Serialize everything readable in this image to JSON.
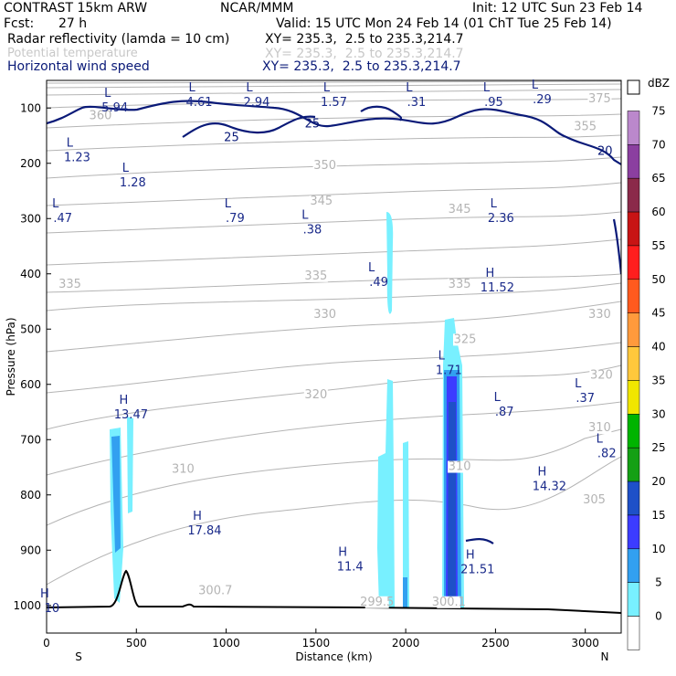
{
  "header": {
    "model": "CONTRAST 15km ARW",
    "center": "NCAR/MMM",
    "init": "Init: 12 UTC Sun 23 Feb 14",
    "fcst_label": "Fcst:",
    "fcst_value": "27 h",
    "valid": "Valid: 15 UTC Mon 24 Feb 14 (01 ChT Tue 25 Feb 14)",
    "fields": [
      {
        "name": "Radar reflectivity (lamda = 10 cm)",
        "xy": "XY= 235.3,  2.5 to 235.3,214.7"
      },
      {
        "name": "Potential temperature",
        "xy": "XY= 235.3,  2.5 to 235.3,214.7"
      },
      {
        "name": "Horizontal wind speed",
        "xy": "XY= 235.3,  2.5 to 235.3,214.7"
      }
    ]
  },
  "colors": {
    "wind_contour": "#0a1a78",
    "theta_contour": "#b4b4b4",
    "terrain": "#000000",
    "label_text": "#1a2a8a"
  },
  "chart_data": {
    "type": "cross-section",
    "title": "Radar reflectivity, potential temperature, horizontal wind speed",
    "xlabel": "Distance (km)",
    "ylabel": "Pressure (hPa)",
    "x_range": [
      0,
      3200
    ],
    "y_range_hpa": [
      1050,
      50
    ],
    "x_ticks": [
      0,
      500,
      1000,
      1500,
      2000,
      2500,
      3000
    ],
    "y_ticks": [
      100,
      200,
      300,
      400,
      500,
      600,
      700,
      800,
      900,
      1000
    ],
    "x_end_labels": {
      "left": "S",
      "right": "N"
    },
    "colorbar": {
      "units": "dBZ",
      "levels": [
        75,
        70,
        65,
        60,
        55,
        50,
        45,
        40,
        35,
        30,
        25,
        20,
        15,
        10,
        5,
        0
      ],
      "colors": [
        "#bb88cc",
        "#8b3fa0",
        "#8b2a4a",
        "#c81414",
        "#ff1e1e",
        "#ff5a1e",
        "#ff9a3c",
        "#ffc83c",
        "#f0e600",
        "#00b400",
        "#14a014",
        "#1e50c8",
        "#3c3cff",
        "#32a0f0",
        "#78f0ff",
        "#ffffff"
      ]
    },
    "theta_levels": [
      {
        "label": "300.7",
        "x": 940,
        "p": 980
      },
      {
        "label": "299.5",
        "x": 1840,
        "p": 1000
      },
      {
        "label": "300.1",
        "x": 2240,
        "p": 1000
      },
      {
        "label": "305",
        "x": 3050,
        "p": 815
      },
      {
        "label": "310",
        "x": 760,
        "p": 760
      },
      {
        "label": "310",
        "x": 2300,
        "p": 755
      },
      {
        "label": "310",
        "x": 3080,
        "p": 685
      },
      {
        "label": "320",
        "x": 1500,
        "p": 625
      },
      {
        "label": "320",
        "x": 3090,
        "p": 590
      },
      {
        "label": "325",
        "x": 2330,
        "p": 525
      },
      {
        "label": "330",
        "x": 1550,
        "p": 480
      },
      {
        "label": "330",
        "x": 3080,
        "p": 480
      },
      {
        "label": "335",
        "x": 130,
        "p": 425
      },
      {
        "label": "335",
        "x": 1500,
        "p": 410
      },
      {
        "label": "335",
        "x": 2300,
        "p": 425
      },
      {
        "label": "345",
        "x": 1530,
        "p": 275
      },
      {
        "label": "345",
        "x": 2300,
        "p": 290
      },
      {
        "label": "350",
        "x": 1550,
        "p": 210
      },
      {
        "label": "355",
        "x": 3000,
        "p": 140
      },
      {
        "label": "360",
        "x": 300,
        "p": 120
      },
      {
        "label": "375",
        "x": 3080,
        "p": 90
      }
    ],
    "wind_labels": [
      {
        "label": "25",
        "x": 1480,
        "p": 135
      },
      {
        "label": "25",
        "x": 1030,
        "p": 160
      },
      {
        "label": "20",
        "x": 3110,
        "p": 185
      }
    ],
    "extrema": [
      {
        "kind": "L",
        "value": "5.94",
        "x": 380,
        "p": 95
      },
      {
        "kind": "L",
        "value": "4.61",
        "x": 850,
        "p": 85
      },
      {
        "kind": "L",
        "value": "2.94",
        "x": 1170,
        "p": 85
      },
      {
        "kind": "L",
        "value": "1.57",
        "x": 1600,
        "p": 85
      },
      {
        "kind": "L",
        "value": ".31",
        "x": 2060,
        "p": 85
      },
      {
        "kind": "L",
        "value": ".95",
        "x": 2490,
        "p": 85
      },
      {
        "kind": "L",
        "value": ".29",
        "x": 2760,
        "p": 80
      },
      {
        "kind": "L",
        "value": "1.23",
        "x": 170,
        "p": 185
      },
      {
        "kind": "L",
        "value": "1.28",
        "x": 480,
        "p": 230
      },
      {
        "kind": "L",
        "value": ".47",
        "x": 90,
        "p": 295
      },
      {
        "kind": "L",
        "value": ".79",
        "x": 1050,
        "p": 295
      },
      {
        "kind": "L",
        "value": ".38",
        "x": 1480,
        "p": 315
      },
      {
        "kind": "L",
        "value": "2.36",
        "x": 2530,
        "p": 295
      },
      {
        "kind": "L",
        "value": ".49",
        "x": 1850,
        "p": 410
      },
      {
        "kind": "H",
        "value": "11.52",
        "x": 2510,
        "p": 420
      },
      {
        "kind": "L",
        "value": "1.71",
        "x": 2240,
        "p": 570
      },
      {
        "kind": "L",
        "value": ".37",
        "x": 3000,
        "p": 620
      },
      {
        "kind": "L",
        "value": ".87",
        "x": 2550,
        "p": 645
      },
      {
        "kind": "L",
        "value": ".82",
        "x": 3120,
        "p": 720
      },
      {
        "kind": "H",
        "value": "13.47",
        "x": 470,
        "p": 650
      },
      {
        "kind": "H",
        "value": "14.32",
        "x": 2800,
        "p": 780
      },
      {
        "kind": "H",
        "value": "17.84",
        "x": 880,
        "p": 860
      },
      {
        "kind": "H",
        "value": "11.4",
        "x": 1690,
        "p": 925
      },
      {
        "kind": "H",
        "value": "21.51",
        "x": 2400,
        "p": 930
      },
      {
        "kind": "H",
        "value": "10",
        "x": 30,
        "p": 1000
      }
    ]
  }
}
